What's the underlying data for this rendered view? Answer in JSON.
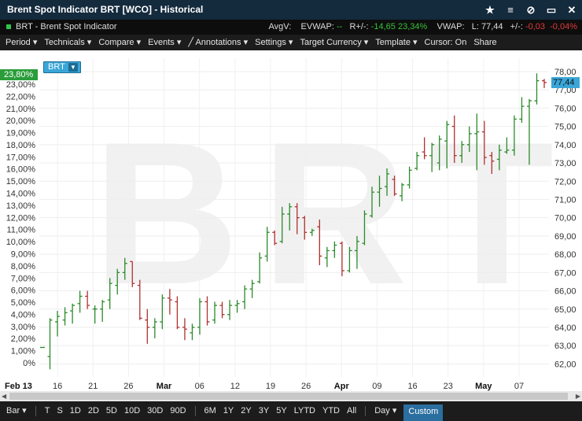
{
  "window": {
    "title": "Brent Spot Indicator BRT [WCO] - Historical",
    "icons": [
      "star-icon",
      "menu-icon",
      "unlink-icon",
      "minimize-icon",
      "close-icon"
    ]
  },
  "info": {
    "symbol_label": "BRT - Brent Spot Indicator",
    "avgv_label": "AvgV:",
    "evwap_label": "EVWAP:",
    "evwap_value": "--",
    "rchg_label": "R+/-:",
    "rchg_value": "-14,65",
    "rchg_pct": "23,34%",
    "vwap_label": "VWAP:",
    "last_label": "L:",
    "last_value": "77,44",
    "chg_label": "+/-:",
    "chg_value": "-0,03",
    "chg_pct": "-0,04%",
    "colors": {
      "up": "#35c23a",
      "down": "#e23a3a"
    }
  },
  "menu": [
    "Period",
    "Technicals",
    "Compare",
    "Events",
    "Annotations",
    "Settings",
    "Target Currency",
    "Template",
    "Cursor: On",
    "Share"
  ],
  "bottom": {
    "chart_type": "Bar",
    "ranges": [
      "T",
      "S",
      "1D",
      "2D",
      "5D",
      "10D",
      "30D",
      "90D",
      "6M",
      "1Y",
      "2Y",
      "3Y",
      "5Y",
      "LYTD",
      "YTD",
      "All"
    ],
    "interval": "Day",
    "custom": "Custom"
  },
  "chart": {
    "watermark": "BRT",
    "badge": "BRT",
    "pct_tag": "23,80%",
    "price_tag": "77,44"
  },
  "chart_data": {
    "type": "ohlc",
    "title": "",
    "series_name": "BRT",
    "left_axis_label": "",
    "right_axis_label": "",
    "left_ticks": [
      "0%",
      "1,00%",
      "2,00%",
      "3,00%",
      "4,00%",
      "5,00%",
      "6,00%",
      "7,00%",
      "8,00%",
      "9,00%",
      "10,00%",
      "11,00%",
      "12,00%",
      "13,00%",
      "14,00%",
      "15,00%",
      "16,00%",
      "17,00%",
      "18,00%",
      "19,00%",
      "20,00%",
      "21,00%",
      "22,00%",
      "23,00%"
    ],
    "right_ticks": [
      "62,00",
      "63,00",
      "64,00",
      "65,00",
      "66,00",
      "67,00",
      "68,00",
      "69,00",
      "70,00",
      "71,00",
      "72,00",
      "73,00",
      "74,00",
      "75,00",
      "76,00",
      "77,00",
      "78,00"
    ],
    "right_range": [
      61.5,
      78.3
    ],
    "x_labels": [
      "Feb 13",
      "16",
      "21",
      "26",
      "Mar",
      "06",
      "12",
      "19",
      "26",
      "Apr",
      "09",
      "16",
      "23",
      "May",
      "07"
    ],
    "x_label_bold": [
      "Feb 13",
      "Mar",
      "Apr",
      "May"
    ],
    "bars": [
      {
        "o": 62.9,
        "h": 62.9,
        "l": 62.9,
        "c": 62.9
      },
      {
        "o": 62.4,
        "h": 64.5,
        "l": 61.7,
        "c": 64.4
      },
      {
        "o": 64.3,
        "h": 64.9,
        "l": 63.5,
        "c": 64.6
      },
      {
        "o": 64.4,
        "h": 65.1,
        "l": 64.1,
        "c": 64.8
      },
      {
        "o": 64.9,
        "h": 65.3,
        "l": 64.2,
        "c": 65.2
      },
      {
        "o": 65.3,
        "h": 66.0,
        "l": 64.8,
        "c": 65.7
      },
      {
        "o": 65.7,
        "h": 66.0,
        "l": 65.0,
        "c": 65.2
      },
      {
        "o": 65.0,
        "h": 65.2,
        "l": 64.2,
        "c": 65.0
      },
      {
        "o": 65.0,
        "h": 65.5,
        "l": 64.3,
        "c": 65.4
      },
      {
        "o": 65.5,
        "h": 66.7,
        "l": 65.0,
        "c": 66.4
      },
      {
        "o": 66.3,
        "h": 67.2,
        "l": 65.8,
        "c": 67.0
      },
      {
        "o": 67.0,
        "h": 67.8,
        "l": 66.6,
        "c": 67.5
      },
      {
        "o": 67.6,
        "h": 67.6,
        "l": 66.2,
        "c": 66.4
      },
      {
        "o": 66.3,
        "h": 66.6,
        "l": 64.4,
        "c": 64.5
      },
      {
        "o": 64.4,
        "h": 65.0,
        "l": 63.1,
        "c": 64.0
      },
      {
        "o": 64.0,
        "h": 64.5,
        "l": 63.4,
        "c": 64.3
      },
      {
        "o": 64.3,
        "h": 65.8,
        "l": 63.9,
        "c": 65.6
      },
      {
        "o": 65.6,
        "h": 66.1,
        "l": 64.7,
        "c": 65.5
      },
      {
        "o": 65.4,
        "h": 65.7,
        "l": 63.9,
        "c": 64.0
      },
      {
        "o": 64.0,
        "h": 64.5,
        "l": 63.3,
        "c": 63.9
      },
      {
        "o": 63.7,
        "h": 64.2,
        "l": 63.3,
        "c": 64.0
      },
      {
        "o": 64.0,
        "h": 65.6,
        "l": 63.6,
        "c": 65.4
      },
      {
        "o": 65.4,
        "h": 65.7,
        "l": 64.1,
        "c": 64.3
      },
      {
        "o": 64.4,
        "h": 65.4,
        "l": 64.2,
        "c": 65.2
      },
      {
        "o": 65.2,
        "h": 65.4,
        "l": 64.5,
        "c": 64.7
      },
      {
        "o": 64.7,
        "h": 65.5,
        "l": 64.4,
        "c": 65.2
      },
      {
        "o": 65.2,
        "h": 65.5,
        "l": 64.8,
        "c": 65.3
      },
      {
        "o": 65.4,
        "h": 66.3,
        "l": 65.0,
        "c": 66.1
      },
      {
        "o": 66.1,
        "h": 66.6,
        "l": 65.6,
        "c": 66.4
      },
      {
        "o": 66.5,
        "h": 68.1,
        "l": 66.4,
        "c": 67.8
      },
      {
        "o": 67.9,
        "h": 69.5,
        "l": 67.6,
        "c": 69.2
      },
      {
        "o": 69.2,
        "h": 69.3,
        "l": 68.5,
        "c": 68.6
      },
      {
        "o": 68.7,
        "h": 70.6,
        "l": 68.6,
        "c": 70.2
      },
      {
        "o": 70.2,
        "h": 70.8,
        "l": 69.3,
        "c": 70.6
      },
      {
        "o": 70.6,
        "h": 70.8,
        "l": 69.1,
        "c": 70.0
      },
      {
        "o": 70.0,
        "h": 70.1,
        "l": 68.8,
        "c": 69.2
      },
      {
        "o": 69.2,
        "h": 69.4,
        "l": 69.0,
        "c": 69.3
      },
      {
        "o": 69.5,
        "h": 69.9,
        "l": 67.4,
        "c": 67.9
      },
      {
        "o": 67.8,
        "h": 68.4,
        "l": 67.3,
        "c": 68.2
      },
      {
        "o": 68.2,
        "h": 68.7,
        "l": 67.8,
        "c": 68.5
      },
      {
        "o": 68.6,
        "h": 68.7,
        "l": 66.8,
        "c": 67.1
      },
      {
        "o": 67.1,
        "h": 68.4,
        "l": 67.0,
        "c": 68.2
      },
      {
        "o": 68.2,
        "h": 69.0,
        "l": 67.2,
        "c": 68.7
      },
      {
        "o": 68.6,
        "h": 70.4,
        "l": 68.5,
        "c": 70.2
      },
      {
        "o": 70.1,
        "h": 71.7,
        "l": 70.0,
        "c": 71.4
      },
      {
        "o": 71.4,
        "h": 72.3,
        "l": 70.6,
        "c": 71.6
      },
      {
        "o": 71.7,
        "h": 72.7,
        "l": 71.2,
        "c": 72.4
      },
      {
        "o": 72.1,
        "h": 72.3,
        "l": 71.2,
        "c": 71.3
      },
      {
        "o": 71.2,
        "h": 71.9,
        "l": 70.9,
        "c": 71.8
      },
      {
        "o": 71.8,
        "h": 72.8,
        "l": 71.6,
        "c": 72.6
      },
      {
        "o": 72.7,
        "h": 73.6,
        "l": 72.6,
        "c": 73.4
      },
      {
        "o": 73.6,
        "h": 74.4,
        "l": 73.2,
        "c": 73.4
      },
      {
        "o": 73.4,
        "h": 74.1,
        "l": 72.5,
        "c": 74.0
      },
      {
        "o": 73.0,
        "h": 74.5,
        "l": 72.6,
        "c": 74.3
      },
      {
        "o": 74.2,
        "h": 75.3,
        "l": 72.7,
        "c": 75.1
      },
      {
        "o": 75.0,
        "h": 75.6,
        "l": 73.0,
        "c": 73.4
      },
      {
        "o": 73.4,
        "h": 74.2,
        "l": 73.0,
        "c": 74.0
      },
      {
        "o": 74.0,
        "h": 75.0,
        "l": 73.6,
        "c": 74.6
      },
      {
        "o": 74.6,
        "h": 75.7,
        "l": 72.6,
        "c": 74.7
      },
      {
        "o": 74.7,
        "h": 75.3,
        "l": 72.9,
        "c": 73.3
      },
      {
        "o": 73.4,
        "h": 73.6,
        "l": 72.4,
        "c": 73.1
      },
      {
        "o": 73.2,
        "h": 74.0,
        "l": 72.6,
        "c": 73.7
      },
      {
        "o": 73.6,
        "h": 74.4,
        "l": 73.5,
        "c": 73.7
      },
      {
        "o": 73.7,
        "h": 75.6,
        "l": 73.4,
        "c": 75.4
      },
      {
        "o": 75.4,
        "h": 76.6,
        "l": 75.2,
        "c": 76.1
      },
      {
        "o": 76.1,
        "h": 76.5,
        "l": 72.9,
        "c": 76.4
      },
      {
        "o": 76.4,
        "h": 77.9,
        "l": 76.2,
        "c": 77.5
      },
      {
        "o": 77.5,
        "h": 77.6,
        "l": 77.1,
        "c": 77.4
      }
    ]
  }
}
